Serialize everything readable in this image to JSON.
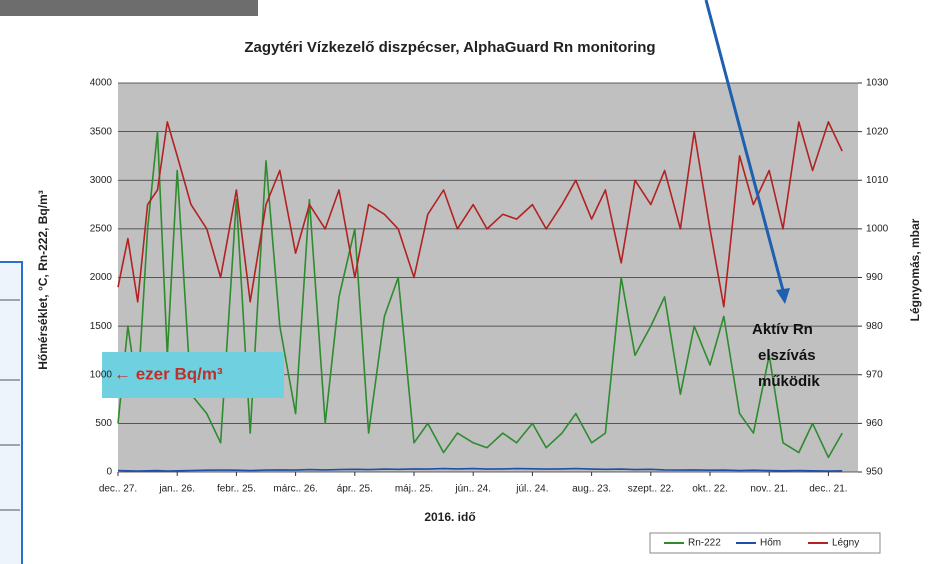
{
  "chart_data": {
    "type": "line",
    "title": "Zagytéri Vízkezelő diszpécser, AlphaGuard Rn monitoring",
    "x_label": "2016. idő",
    "y_label": "Hőmérséklet, °C, Rn-222, Bq/m³",
    "y2_label": "Légnyomás, mbar",
    "annotations": [
      "Aktív Rn",
      "elszívás",
      "működik"
    ],
    "note": "← ezer Bq/m³",
    "x": [
      0,
      5,
      10,
      15,
      20,
      25,
      30,
      37,
      45,
      52,
      60,
      67,
      75,
      82,
      90,
      97,
      105,
      112,
      120,
      127,
      135,
      142,
      150,
      157,
      165,
      172,
      180,
      187,
      195,
      202,
      210,
      217,
      225,
      232,
      240,
      247,
      255,
      262,
      270,
      277,
      285,
      292,
      300,
      307,
      315,
      322,
      330,
      337,
      345,
      352,
      360,
      367
    ],
    "xlim": [
      0,
      375
    ],
    "xticks": [
      {
        "value": 0,
        "label": "dec.. 27."
      },
      {
        "value": 30,
        "label": "jan.. 26."
      },
      {
        "value": 60,
        "label": "febr.. 25."
      },
      {
        "value": 90,
        "label": "márc.. 26."
      },
      {
        "value": 120,
        "label": "ápr.. 25."
      },
      {
        "value": 150,
        "label": "máj.. 25."
      },
      {
        "value": 180,
        "label": "jún.. 24."
      },
      {
        "value": 210,
        "label": "júl.. 24."
      },
      {
        "value": 240,
        "label": "aug.. 23."
      },
      {
        "value": 270,
        "label": "szept.. 22."
      },
      {
        "value": 300,
        "label": "okt.. 22."
      },
      {
        "value": 330,
        "label": "nov.. 21."
      },
      {
        "value": 360,
        "label": "dec.. 21."
      }
    ],
    "ylim": [
      0,
      4000
    ],
    "yticks": [
      0,
      500,
      1000,
      1500,
      2000,
      2500,
      3000,
      3500,
      4000
    ],
    "y2lim": [
      950,
      1030
    ],
    "y2ticks": [
      950,
      960,
      970,
      980,
      990,
      1000,
      1010,
      1020,
      1030
    ],
    "grid": true,
    "legend": "bottom-right",
    "series": [
      {
        "name": "Rn-222",
        "color": "#2e8b2e",
        "values": [
          500,
          1500,
          800,
          2500,
          3500,
          1200,
          3100,
          800,
          600,
          300,
          2800,
          400,
          3200,
          1500,
          600,
          2800,
          500,
          1800,
          2500,
          400,
          1600,
          2000,
          300,
          500,
          200,
          400,
          300,
          250,
          400,
          300,
          500,
          250,
          400,
          600,
          300,
          400,
          2000,
          1200,
          1500,
          1800,
          800,
          1500,
          1100,
          1600,
          600,
          400,
          1200,
          300,
          200,
          500,
          150,
          400
        ]
      },
      {
        "name": "Hőm",
        "color": "#1f4fa8",
        "values": [
          15,
          12,
          10,
          12,
          14,
          10,
          12,
          15,
          18,
          20,
          18,
          15,
          20,
          22,
          20,
          25,
          22,
          25,
          28,
          25,
          30,
          28,
          32,
          30,
          35,
          32,
          35,
          30,
          32,
          35,
          33,
          30,
          32,
          35,
          30,
          28,
          30,
          25,
          28,
          22,
          20,
          22,
          18,
          20,
          15,
          18,
          14,
          12,
          15,
          12,
          10,
          12
        ]
      },
      {
        "name": "Légny",
        "color": "#b22222",
        "axis": "y2",
        "values": [
          988,
          998,
          985,
          1005,
          1008,
          1022,
          1015,
          1005,
          1000,
          990,
          1008,
          985,
          1005,
          1012,
          995,
          1005,
          1000,
          1008,
          990,
          1005,
          1003,
          1000,
          990,
          1003,
          1008,
          1000,
          1005,
          1000,
          1003,
          1002,
          1005,
          1000,
          1005,
          1010,
          1002,
          1008,
          993,
          1010,
          1005,
          1012,
          1000,
          1020,
          1000,
          984,
          1015,
          1005,
          1012,
          1000,
          1022,
          1012,
          1022,
          1016
        ]
      }
    ]
  }
}
